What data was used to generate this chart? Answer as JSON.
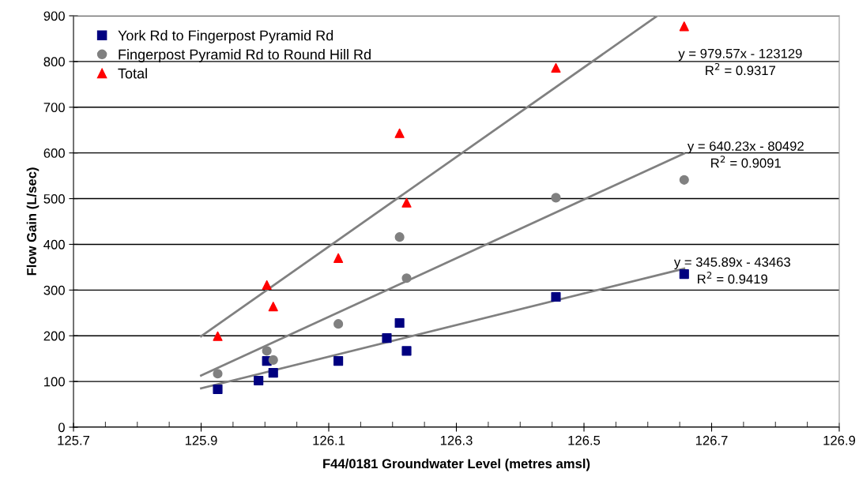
{
  "chart_data": {
    "type": "scatter",
    "xlabel": "F44/0181 Groundwater Level (metres amsl)",
    "ylabel": "Flow Gain (L/sec)",
    "xlim": [
      125.7,
      126.9
    ],
    "ylim": [
      0,
      900
    ],
    "xticks": [
      125.7,
      {
        "value": 125.75,
        "label": null
      },
      {
        "value": 125.8,
        "label": null
      },
      {
        "value": 125.85,
        "label": null
      },
      125.9,
      {
        "value": 125.95,
        "label": null
      },
      {
        "value": 126.0,
        "label": null
      },
      {
        "value": 126.05,
        "label": null
      },
      126.1,
      {
        "value": 126.15,
        "label": null
      },
      {
        "value": 126.2,
        "label": null
      },
      {
        "value": 126.25,
        "label": null
      },
      126.3,
      {
        "value": 126.35,
        "label": null
      },
      {
        "value": 126.4,
        "label": null
      },
      {
        "value": 126.45,
        "label": null
      },
      126.5,
      {
        "value": 126.55,
        "label": null
      },
      {
        "value": 126.6,
        "label": null
      },
      {
        "value": 126.65,
        "label": null
      },
      126.7,
      {
        "value": 126.75,
        "label": null
      },
      {
        "value": 126.8,
        "label": null
      },
      {
        "value": 126.85,
        "label": null
      },
      126.9
    ],
    "yticks": [
      0,
      100,
      200,
      300,
      400,
      500,
      600,
      700,
      800,
      900
    ],
    "grid": "y",
    "legend": "top left",
    "series": [
      {
        "name": "York Rd to Fingerpost Pyramid Rd",
        "color": "#000080",
        "marker": "square",
        "x": [
          125.926,
          125.99,
          126.003,
          126.013,
          126.115,
          126.191,
          126.211,
          126.222,
          126.456,
          126.657
        ],
        "values": [
          83,
          102,
          145,
          119,
          145,
          195,
          228,
          167,
          285,
          335
        ]
      },
      {
        "name": "Fingerpost Pyramid Rd to Round Hill Rd",
        "color": "#808080",
        "marker": "circle",
        "x": [
          125.926,
          126.003,
          126.013,
          126.115,
          126.211,
          126.222,
          126.456,
          126.657
        ],
        "values": [
          117,
          167,
          147,
          226,
          416,
          326,
          502,
          541
        ]
      },
      {
        "name": "Total",
        "color": "#ff0000",
        "marker": "triangle",
        "x": [
          125.926,
          126.003,
          126.013,
          126.115,
          126.211,
          126.222,
          126.456,
          126.657
        ],
        "values": [
          199,
          311,
          264,
          370,
          643,
          491,
          786,
          877
        ]
      },
      {
        "type": "line",
        "color": "#808080",
        "x": [
          125.9,
          126.615
        ],
        "values": [
          199,
          900
        ]
      },
      {
        "type": "line",
        "color": "#808080",
        "x": [
          125.9,
          126.657
        ],
        "values": [
          113,
          599
        ]
      },
      {
        "type": "line",
        "color": "#808080",
        "x": [
          125.9,
          126.657
        ],
        "values": [
          85,
          347
        ]
      }
    ],
    "annotations": [
      "y = 979.57x - 123129\nR$^{2}$ = 0.9317",
      "y = 640.23x - 80492\nR$^{2}$ = 0.9091",
      "y = 345.89x - 43463\nR$^{2}$ = 0.9419"
    ]
  }
}
